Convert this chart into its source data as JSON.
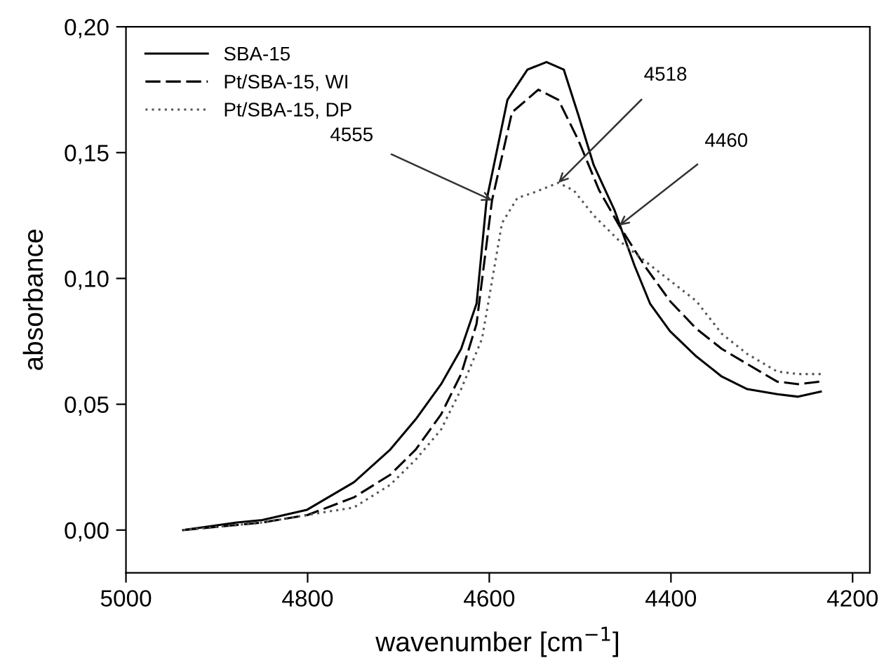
{
  "chart_data": {
    "type": "line",
    "xlabel": "wavenumber [cm$^{−1}$]",
    "ylabel": "absorbance",
    "xlim": [
      5000,
      4181
    ],
    "xticks": [
      5000,
      4800,
      4600,
      4400,
      4200
    ],
    "ylim": [
      -0.017,
      0.2
    ],
    "yticks": [
      {
        "value": 0.0,
        "label": "0,00"
      },
      {
        "value": 0.05,
        "label": "0,05"
      },
      {
        "value": 0.1,
        "label": "0,10"
      },
      {
        "value": 0.15,
        "label": "0,15"
      },
      {
        "value": 0.2,
        "label": "0,20"
      }
    ],
    "grid": false,
    "legend": "top left",
    "marker": "none",
    "annotations": [
      {
        "text": "4555",
        "x": 4597,
        "y": 0.131
      },
      {
        "text": "4518",
        "x": 4524,
        "y": 0.138
      },
      {
        "text": "4460",
        "x": 4457,
        "y": 0.121
      }
    ],
    "series": [
      {
        "name": "SBA-15",
        "color": "#000000",
        "line_style": "solid",
        "x": [
          4937,
          4878,
          4850,
          4801,
          4749,
          4709,
          4681,
          4653,
          4631,
          4614,
          4603,
          4580,
          4558,
          4537,
          4518,
          4502,
          4485,
          4462,
          4440,
          4423,
          4401,
          4372,
          4344,
          4316,
          4283,
          4260,
          4235
        ],
        "values": [
          0.0,
          0.003,
          0.004,
          0.008,
          0.019,
          0.032,
          0.044,
          0.058,
          0.072,
          0.09,
          0.131,
          0.171,
          0.183,
          0.186,
          0.183,
          0.165,
          0.145,
          0.127,
          0.105,
          0.09,
          0.079,
          0.069,
          0.061,
          0.056,
          0.054,
          0.053,
          0.055
        ]
      },
      {
        "name": "Pt/SBA-15, WI",
        "color": "#000000",
        "line_style": "dashed",
        "x": [
          4937,
          4878,
          4850,
          4800,
          4749,
          4709,
          4681,
          4653,
          4631,
          4614,
          4597,
          4575,
          4546,
          4524,
          4502,
          4479,
          4457,
          4429,
          4401,
          4372,
          4344,
          4316,
          4283,
          4260,
          4235
        ],
        "values": [
          0.0,
          0.002,
          0.003,
          0.006,
          0.013,
          0.022,
          0.032,
          0.046,
          0.062,
          0.082,
          0.131,
          0.166,
          0.175,
          0.171,
          0.155,
          0.135,
          0.121,
          0.105,
          0.091,
          0.08,
          0.072,
          0.066,
          0.059,
          0.058,
          0.059
        ]
      },
      {
        "name": "Pt/SBA-15, DP",
        "color": "#555555",
        "line_style": "dotted",
        "x": [
          4937,
          4878,
          4850,
          4800,
          4749,
          4709,
          4681,
          4653,
          4631,
          4608,
          4597,
          4586,
          4569,
          4552,
          4524,
          4507,
          4485,
          4457,
          4429,
          4372,
          4344,
          4316,
          4283,
          4260,
          4235
        ],
        "values": [
          0.0,
          0.002,
          0.003,
          0.006,
          0.009,
          0.018,
          0.028,
          0.04,
          0.056,
          0.076,
          0.099,
          0.122,
          0.132,
          0.134,
          0.138,
          0.135,
          0.125,
          0.115,
          0.107,
          0.091,
          0.078,
          0.07,
          0.063,
          0.062,
          0.062
        ]
      }
    ]
  }
}
